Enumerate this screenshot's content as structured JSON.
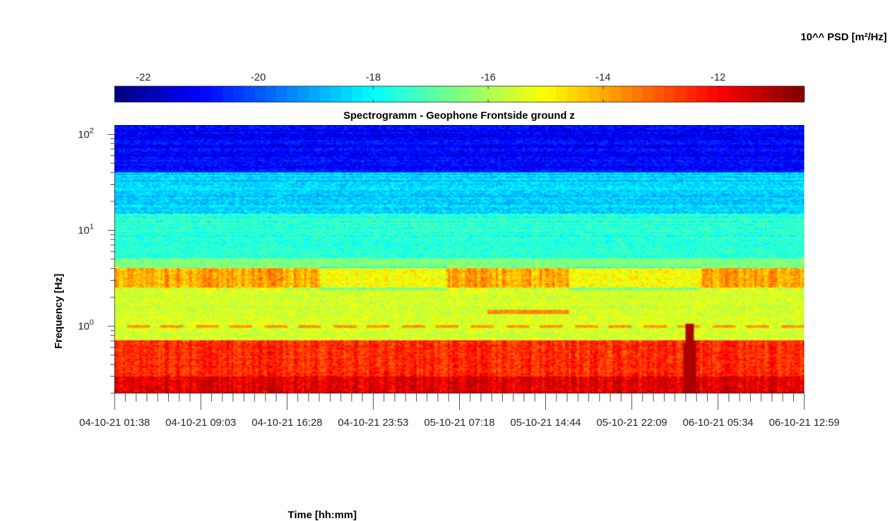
{
  "chart_data": {
    "type": "heatmap",
    "title": "Spectrogramm - Geophone Frontside ground z",
    "xlabel": "Time [hh:mm]",
    "ylabel": "Frequency [Hz]",
    "colorbar": {
      "label": "10^^ PSD [m²/Hz]",
      "colormap": "jet",
      "range": [
        -22.5,
        -10.5
      ],
      "ticks": [
        -22,
        -20,
        -18,
        -16,
        -14,
        -12
      ],
      "tick_labels": [
        "-22",
        "-20",
        "-18",
        "-16",
        "-14",
        "-12"
      ],
      "location": "top"
    },
    "x_tick_labels": [
      "04-10-21  01:38",
      "04-10-21  09:03",
      "04-10-21  16:28",
      "04-10-21  23:53",
      "05-10-21  07:18",
      "05-10-21  14:44",
      "05-10-21  22:09",
      "06-10-21  05:34",
      "06-10-21  12:59"
    ],
    "x_scale": "time",
    "y_scale": "log",
    "ylim_hz": [
      0.2,
      125
    ],
    "y_tick_labels": [
      {
        "base": "10",
        "exp": "0",
        "value": 1
      },
      {
        "base": "10",
        "exp": "1",
        "value": 10
      },
      {
        "base": "10",
        "exp": "2",
        "value": 100
      }
    ],
    "grid": false,
    "features": [
      {
        "description_of_pattern": "broadband high energy",
        "freq_range_hz": [
          0.2,
          0.7
        ],
        "log_psd": -12.5
      },
      {
        "description_of_pattern": "microseism band",
        "freq_range_hz": [
          0.7,
          2.5
        ],
        "log_psd": -15.5
      },
      {
        "description_of_pattern": "bursts",
        "freq_range_hz": [
          2.5,
          4.0
        ],
        "log_psd": -14.0
      },
      {
        "description_of_pattern": "mid band",
        "freq_range_hz": [
          5,
          15
        ],
        "log_psd": -17.5
      },
      {
        "description_of_pattern": "high band",
        "freq_range_hz": [
          15,
          40
        ],
        "log_psd": -18.5
      },
      {
        "description_of_pattern": "top band",
        "freq_range_hz": [
          40,
          125
        ],
        "log_psd": -21.0
      },
      {
        "description_of_pattern": "tone",
        "freq_hz": 1.0,
        "log_psd": -13.8
      },
      {
        "description_of_pattern": "tone",
        "freq_hz": 1.4,
        "log_psd": -13.6
      },
      {
        "description_of_pattern": "transient",
        "time_fraction": 0.834,
        "log_psd": -11.0
      }
    ]
  }
}
